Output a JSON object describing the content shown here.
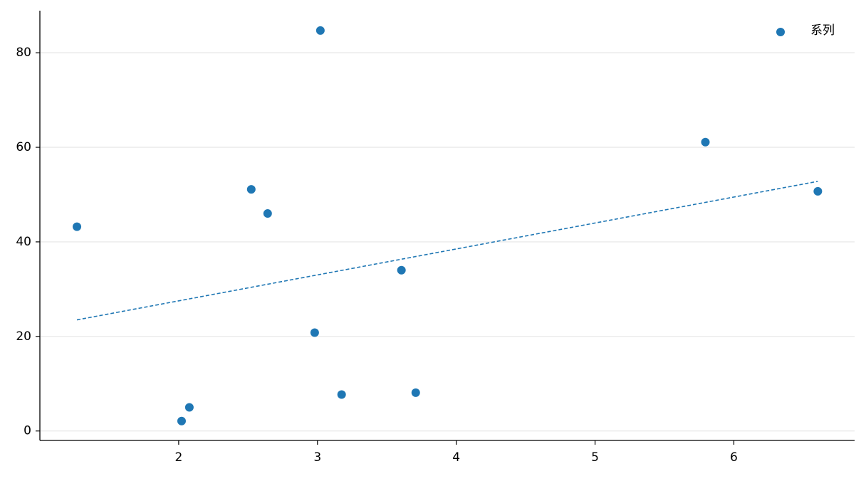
{
  "chart_data": {
    "type": "scatter",
    "series": [
      {
        "name": "系列",
        "color": "#1f77b4",
        "x": [
          1.267,
          2.021,
          2.077,
          2.523,
          2.641,
          2.98,
          3.021,
          3.174,
          3.605,
          3.708,
          5.795,
          6.605
        ],
        "values": [
          43.2,
          2.1,
          5.0,
          51.1,
          46.0,
          20.8,
          84.7,
          7.7,
          34.0,
          8.1,
          61.1,
          50.7
        ]
      }
    ],
    "trendline": {
      "x": [
        1.267,
        6.605
      ],
      "values": [
        23.5,
        52.8
      ],
      "color": "#1f77b4",
      "dashed": true
    },
    "xlim": [
      1.0,
      6.87
    ],
    "xticks": [
      2,
      3,
      4,
      5,
      6
    ],
    "ylim": [
      -2,
      88.9
    ],
    "yticks": [
      0,
      20,
      40,
      60,
      80
    ],
    "grid": "y",
    "legend": "upper right"
  }
}
